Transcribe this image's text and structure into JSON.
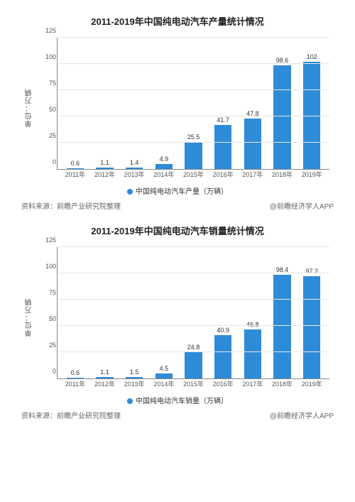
{
  "charts": [
    {
      "title": "2011-2019年中国纯电动汽车产量统计情况",
      "ylabel": "单位：万辆",
      "ymax": 125,
      "ytick_step": 25,
      "bar_color": "#2e8bd8",
      "grid_color": "#e6e6e6",
      "axis_color": "#888888",
      "legend_label": "中国纯电动汽车产量（万辆）",
      "categories": [
        "2011年",
        "2012年",
        "2013年",
        "2014年",
        "2015年",
        "2016年",
        "2017年",
        "2018年",
        "2019年"
      ],
      "values": [
        0.6,
        1.1,
        1.4,
        4.9,
        25.5,
        41.7,
        47.8,
        98.6,
        102
      ],
      "source_left": "资料来源：前瞻产业研究院整理",
      "source_right": "@前瞻经济学人APP"
    },
    {
      "title": "2011-2019年中国纯电动汽车销量统计情况",
      "ylabel": "单位：万辆",
      "ymax": 125,
      "ytick_step": 25,
      "bar_color": "#2e8bd8",
      "grid_color": "#e6e6e6",
      "axis_color": "#888888",
      "legend_label": "中国纯电动汽车销量（万辆）",
      "categories": [
        "2011年",
        "2012年",
        "2013年",
        "2014年",
        "2015年",
        "2016年",
        "2017年",
        "2018年",
        "2019年"
      ],
      "values": [
        0.6,
        1.1,
        1.5,
        4.5,
        24.8,
        40.9,
        46.8,
        98.4,
        97.2
      ],
      "source_left": "资料来源：前瞻产业研究院整理",
      "source_right": "@前瞻经济学人APP"
    }
  ]
}
